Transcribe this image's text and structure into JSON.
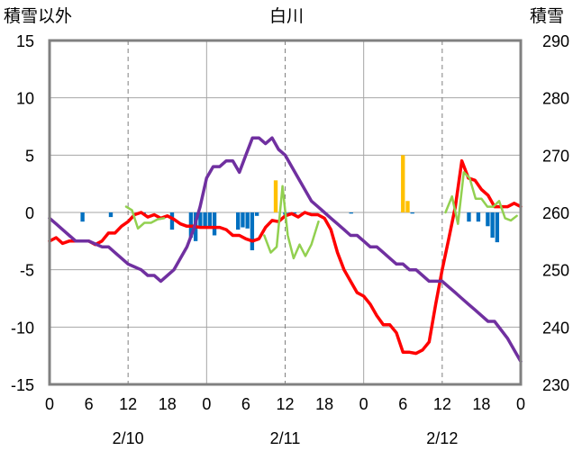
{
  "chart_data": {
    "type": "line",
    "title": "白川",
    "left_axis_label": "積雪以外",
    "right_axis_label": "積雪",
    "left_ylim": [
      -15,
      15
    ],
    "left_ticks": [
      15,
      10,
      5,
      0,
      -5,
      -10,
      -15
    ],
    "right_ylim": [
      230,
      290
    ],
    "right_ticks": [
      290,
      280,
      270,
      260,
      250,
      240,
      230
    ],
    "x_range_hours": [
      0,
      72
    ],
    "x_tick_labels": [
      "0",
      "6",
      "12",
      "18",
      "0",
      "6",
      "12",
      "18",
      "0",
      "6",
      "12",
      "18",
      "0"
    ],
    "date_labels": [
      "2/10",
      "2/11",
      "2/12"
    ],
    "grid": true,
    "colors": {
      "red": "#ff0000",
      "green": "#92d050",
      "purple": "#7030a0",
      "blue_bars": "#0070c0",
      "orange_bars": "#ffc000",
      "frame": "#808080"
    },
    "series": [
      {
        "color": "red",
        "axis": "left",
        "points": [
          [
            0,
            -2.5
          ],
          [
            1,
            -2.2
          ],
          [
            2,
            -2.7
          ],
          [
            3,
            -2.5
          ],
          [
            4,
            -2.5
          ],
          [
            5,
            -2.5
          ],
          [
            6,
            -2.5
          ],
          [
            7,
            -2.8
          ],
          [
            8,
            -2.5
          ],
          [
            9,
            -1.8
          ],
          [
            10,
            -1.8
          ],
          [
            11,
            -1.2
          ],
          [
            12,
            -0.8
          ],
          [
            13,
            -0.2
          ],
          [
            14,
            0
          ],
          [
            15,
            -0.4
          ],
          [
            16,
            -0.2
          ],
          [
            17,
            -0.5
          ],
          [
            18,
            -0.3
          ],
          [
            19,
            -0.6
          ],
          [
            20,
            -1
          ],
          [
            21,
            -1.2
          ],
          [
            22,
            -1.2
          ],
          [
            23,
            -1.3
          ],
          [
            24,
            -1.3
          ],
          [
            25,
            -1.3
          ],
          [
            26,
            -1.3
          ],
          [
            27,
            -1.5
          ],
          [
            28,
            -2
          ],
          [
            29,
            -2
          ],
          [
            30,
            -2.3
          ],
          [
            31,
            -2.5
          ],
          [
            32,
            -2.3
          ],
          [
            33,
            -1.3
          ],
          [
            34,
            -0.7
          ],
          [
            35,
            -0.8
          ],
          [
            36,
            -0.3
          ],
          [
            37,
            -0.1
          ],
          [
            38,
            -0.4
          ],
          [
            39,
            0
          ],
          [
            40,
            -0.2
          ],
          [
            41,
            -0.2
          ],
          [
            42,
            -0.5
          ],
          [
            43,
            -1.5
          ],
          [
            44,
            -3.5
          ],
          [
            45,
            -5
          ],
          [
            46,
            -6
          ],
          [
            47,
            -7
          ],
          [
            48,
            -7.3
          ],
          [
            49,
            -8
          ],
          [
            50,
            -9
          ],
          [
            51,
            -9.8
          ],
          [
            52,
            -9.8
          ],
          [
            53,
            -10.5
          ],
          [
            54,
            -12.2
          ],
          [
            55,
            -12.2
          ],
          [
            56,
            -12.3
          ],
          [
            57,
            -12
          ],
          [
            58,
            -11.3
          ],
          [
            59,
            -8
          ],
          [
            60,
            -5
          ],
          [
            61,
            -2.3
          ],
          [
            62,
            0.5
          ],
          [
            63,
            4.5
          ],
          [
            64,
            3
          ],
          [
            65,
            2.8
          ],
          [
            66,
            2
          ],
          [
            67,
            1.5
          ],
          [
            68,
            0.5
          ],
          [
            69,
            0.5
          ],
          [
            70,
            0.5
          ],
          [
            71,
            0.8
          ],
          [
            72,
            0.5
          ]
        ]
      },
      {
        "color": "green",
        "axis": "left",
        "segments": [
          [
            [
              11.7,
              0.5
            ],
            [
              12.6,
              0.2
            ],
            [
              13.5,
              -1.4
            ],
            [
              14.5,
              -0.9
            ],
            [
              15.5,
              -0.9
            ],
            [
              16.5,
              -0.6
            ],
            [
              17.5,
              -0.5
            ]
          ],
          [
            [
              32.8,
              -2
            ],
            [
              33.8,
              -3.5
            ],
            [
              34.7,
              -3
            ],
            [
              35.6,
              2.3
            ],
            [
              36.4,
              -2
            ],
            [
              37.3,
              -4
            ],
            [
              38.2,
              -2.8
            ],
            [
              39.1,
              -3.8
            ],
            [
              40,
              -2.8
            ],
            [
              41.1,
              -0.8
            ]
          ],
          [
            [
              60.5,
              0
            ],
            [
              61.5,
              1.4
            ],
            [
              62.4,
              -1
            ],
            [
              63.3,
              3.5
            ],
            [
              64.2,
              3
            ],
            [
              65.1,
              1.2
            ],
            [
              66,
              1.2
            ],
            [
              66.9,
              0.5
            ],
            [
              67.8,
              0.5
            ],
            [
              68.7,
              1
            ],
            [
              69.6,
              -0.5
            ],
            [
              70.5,
              -0.7
            ],
            [
              71.4,
              -0.3
            ]
          ]
        ]
      },
      {
        "color": "purple",
        "axis": "right",
        "points": [
          [
            0,
            259
          ],
          [
            1,
            258
          ],
          [
            2,
            257
          ],
          [
            3,
            256
          ],
          [
            4,
            255
          ],
          [
            5,
            255
          ],
          [
            6,
            255
          ],
          [
            7,
            254.5
          ],
          [
            8,
            254
          ],
          [
            9,
            254
          ],
          [
            10,
            253
          ],
          [
            11,
            252
          ],
          [
            12,
            251
          ],
          [
            13,
            250.5
          ],
          [
            14,
            250
          ],
          [
            15,
            249
          ],
          [
            16,
            249
          ],
          [
            17,
            248
          ],
          [
            18,
            249
          ],
          [
            19,
            250
          ],
          [
            20,
            252
          ],
          [
            21,
            254
          ],
          [
            22,
            257
          ],
          [
            23,
            261
          ],
          [
            24,
            266
          ],
          [
            25,
            268
          ],
          [
            26,
            268
          ],
          [
            27,
            269
          ],
          [
            28,
            269
          ],
          [
            29,
            267
          ],
          [
            30,
            270
          ],
          [
            31,
            273
          ],
          [
            32,
            273
          ],
          [
            33,
            272
          ],
          [
            34,
            273
          ],
          [
            35,
            271
          ],
          [
            36,
            270
          ],
          [
            37,
            268
          ],
          [
            38,
            266
          ],
          [
            39,
            264
          ],
          [
            40,
            262
          ],
          [
            41,
            261
          ],
          [
            42,
            260
          ],
          [
            43,
            259
          ],
          [
            44,
            258
          ],
          [
            45,
            257
          ],
          [
            46,
            256
          ],
          [
            47,
            256
          ],
          [
            48,
            255
          ],
          [
            49,
            254
          ],
          [
            50,
            254
          ],
          [
            51,
            253
          ],
          [
            52,
            252
          ],
          [
            53,
            251
          ],
          [
            54,
            251
          ],
          [
            55,
            250
          ],
          [
            56,
            250
          ],
          [
            57,
            249
          ],
          [
            58,
            248
          ],
          [
            59,
            248
          ],
          [
            60,
            248
          ],
          [
            61,
            247
          ],
          [
            62,
            246
          ],
          [
            63,
            245
          ],
          [
            64,
            244
          ],
          [
            65,
            243
          ],
          [
            66,
            242
          ],
          [
            67,
            241
          ],
          [
            68,
            241
          ],
          [
            69,
            239.5
          ],
          [
            70,
            238
          ],
          [
            71,
            236
          ],
          [
            72,
            234
          ]
        ]
      }
    ],
    "bars": [
      {
        "color": "blue_bars",
        "values": [
          [
            14,
            -0.8
          ],
          [
            26,
            -0.4
          ],
          [
            40,
            -0.2
          ],
          [
            52,
            -1.5
          ],
          [
            60,
            -2.2
          ],
          [
            62,
            -2.5
          ],
          [
            64,
            -1.4
          ],
          [
            66,
            -1.3
          ],
          [
            68,
            -1.2
          ],
          [
            70,
            -2
          ],
          [
            80,
            -1.5
          ],
          [
            82,
            -1.3
          ],
          [
            84,
            -1.4
          ],
          [
            86,
            -3.3
          ],
          [
            88,
            -0.3
          ],
          [
            100,
            -0.2
          ],
          [
            102,
            -0.1
          ],
          [
            104,
            -0.1
          ],
          [
            108,
            -0.1
          ],
          [
            128,
            -0.1
          ],
          [
            154,
            -0.1
          ],
          [
            178,
            -0.8
          ],
          [
            182,
            -0.8
          ],
          [
            186,
            -1.2
          ],
          [
            188,
            -2.2
          ],
          [
            190,
            -2.6
          ]
        ]
      },
      {
        "color": "orange_bars",
        "values": [
          [
            96,
            2.8
          ],
          [
            150,
            5
          ],
          [
            152,
            1
          ]
        ]
      }
    ]
  }
}
